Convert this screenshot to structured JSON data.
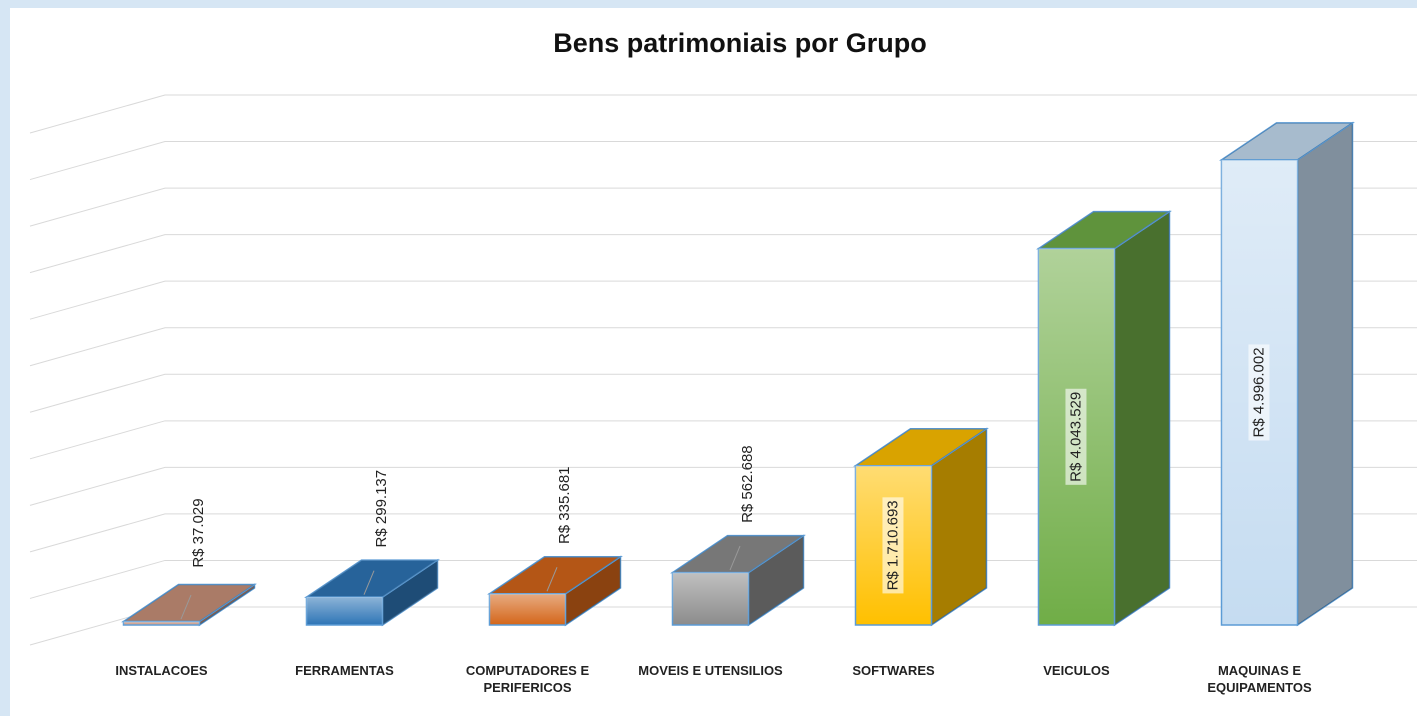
{
  "chart_data": {
    "type": "bar3d",
    "title": "Bens patrimoniais por Grupo",
    "categories": [
      "INSTALACOES",
      "FERRAMENTAS",
      "COMPUTADORES E PERIFERICOS",
      "MOVEIS E UTENSILIOS",
      "SOFTWARES",
      "VEICULOS",
      "MAQUINAS E EQUIPAMENTOS"
    ],
    "values": [
      37029,
      299137,
      335681,
      562688,
      1710693,
      4043529,
      4996002
    ],
    "value_labels": [
      "R$ 37.029",
      "R$ 299.137",
      "R$ 335.681",
      "R$ 562.688",
      "R$ 1.710.693",
      "R$ 4.043.529",
      "R$ 4.996.002"
    ],
    "colors": [
      "#c8917a",
      "#2e75b6",
      "#d4661a",
      "#8c8c8c",
      "#ffc000",
      "#70ad47",
      "#c5dcf1"
    ],
    "ylim": [
      0,
      5500000
    ],
    "yticks": [
      0,
      500000,
      1000000,
      1500000,
      2000000,
      2500000,
      3000000,
      3500000,
      4000000,
      4500000,
      5000000,
      5500000
    ],
    "grid": true
  }
}
